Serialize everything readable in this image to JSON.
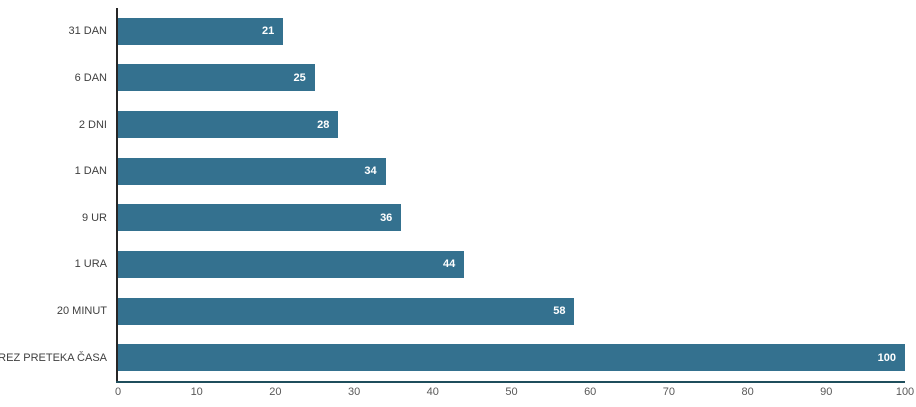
{
  "chart_data": {
    "type": "bar",
    "orientation": "horizontal",
    "title": "",
    "xlabel": "",
    "ylabel": "",
    "categories": [
      "31 DAN",
      "6 DAN",
      "2 DNI",
      "1 DAN",
      "9 UR",
      "1 URA",
      "20 MINUT",
      "BREZ PRETEKA ČASA"
    ],
    "values": [
      21,
      25,
      28,
      34,
      36,
      44,
      58,
      100
    ],
    "xlim": [
      0,
      100
    ],
    "x_ticks": [
      0,
      10,
      20,
      30,
      40,
      50,
      60,
      70,
      80,
      90,
      100
    ],
    "grid": false,
    "legend": false,
    "bar_color": "#34718F",
    "value_label_color": "#FFFFFF",
    "y_axis_line_color": "#262626",
    "x_axis_line_color": "#1F4E5C",
    "category_label_color": "#404040",
    "tick_label_color": "#595959"
  }
}
